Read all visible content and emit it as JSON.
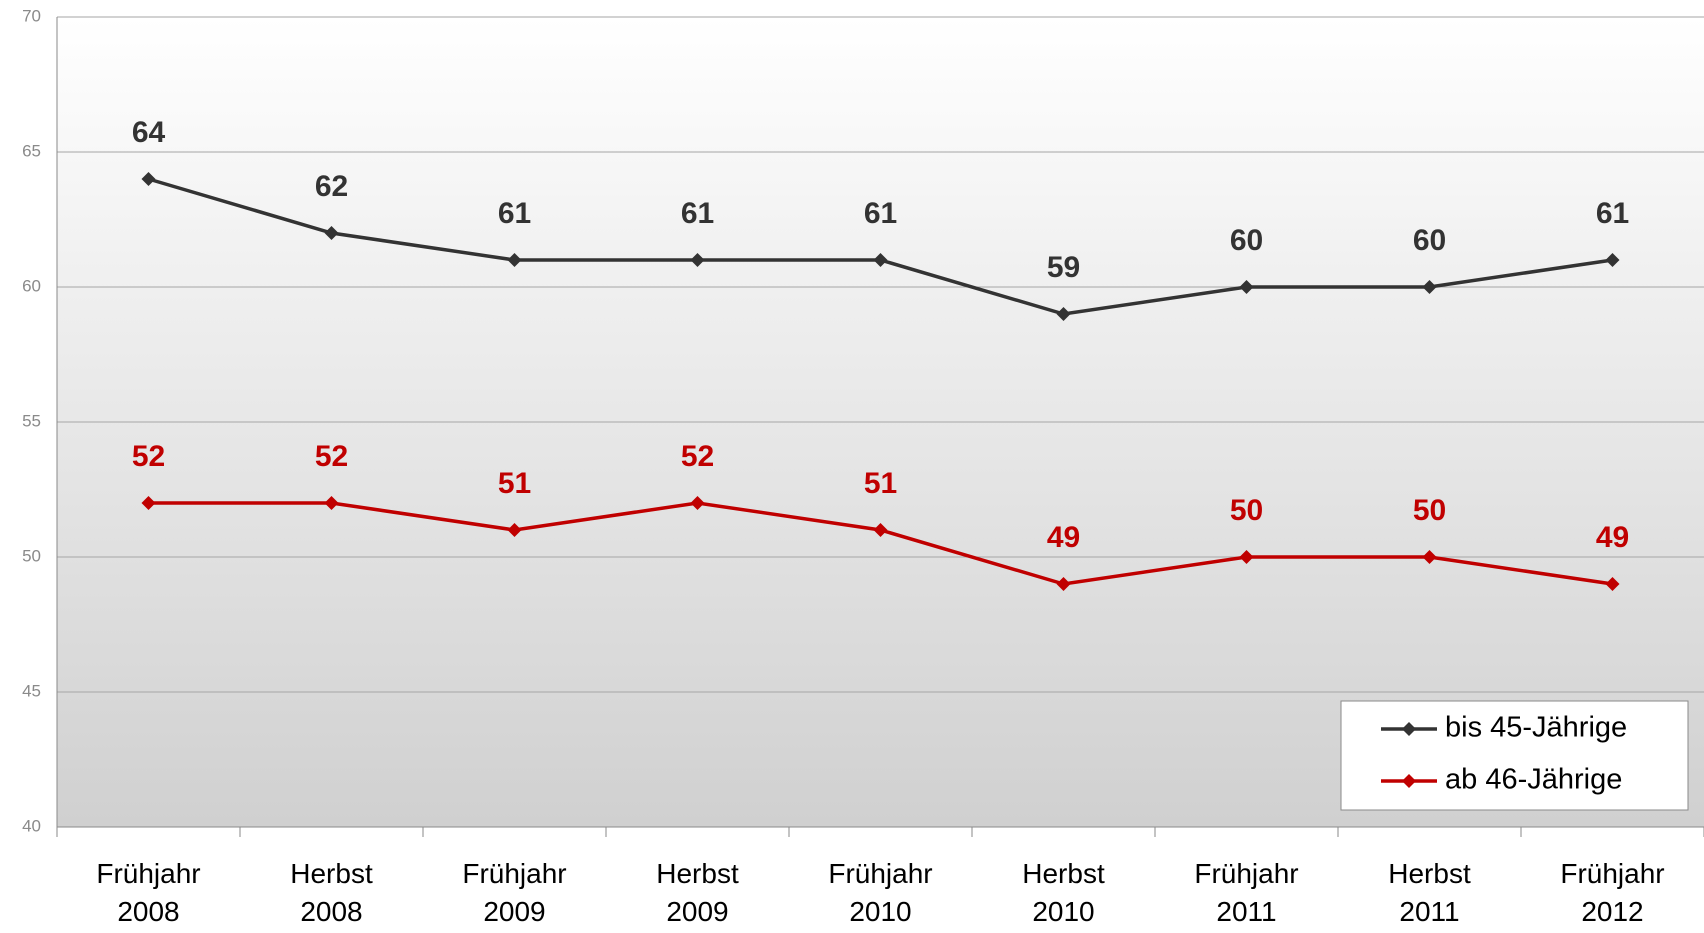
{
  "chart_data": {
    "type": "line",
    "categories": [
      [
        "Frühjahr",
        "2008"
      ],
      [
        "Herbst",
        "2008"
      ],
      [
        "Frühjahr",
        "2009"
      ],
      [
        "Herbst",
        "2009"
      ],
      [
        "Frühjahr",
        "2010"
      ],
      [
        "Herbst",
        "2010"
      ],
      [
        "Frühjahr",
        "2011"
      ],
      [
        "Herbst",
        "2011"
      ],
      [
        "Frühjahr",
        "2012"
      ]
    ],
    "series": [
      {
        "name": "bis 45-Jährige",
        "color": "#333333",
        "values": [
          64,
          62,
          61,
          61,
          61,
          59,
          60,
          60,
          61
        ]
      },
      {
        "name": "ab 46-Jährige",
        "color": "#c00000",
        "values": [
          52,
          52,
          51,
          52,
          51,
          49,
          50,
          50,
          49
        ]
      }
    ],
    "ylim": [
      40,
      70
    ],
    "yticks": [
      40,
      45,
      50,
      55,
      60,
      65,
      70
    ],
    "grid": true,
    "legend": "lower right"
  }
}
